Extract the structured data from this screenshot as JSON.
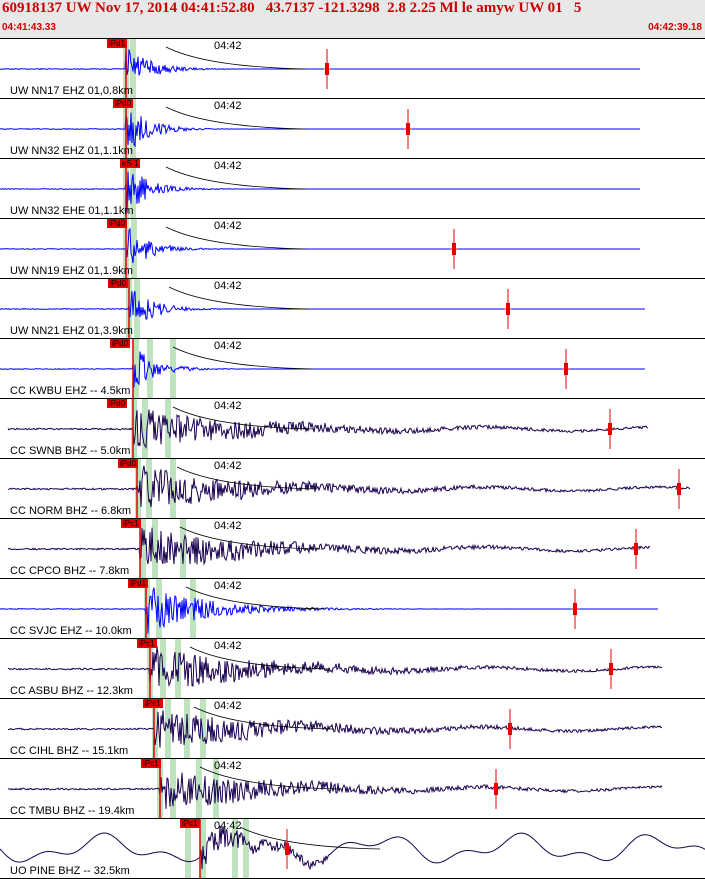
{
  "header": {
    "title": "60918137 UW Nov 17, 2014 04:41:52.80   43.7137 -121.3298  2.8 2.25 Ml le amyw UW 01   5",
    "start_time": "04:41:43.33",
    "end_time": "04:42:39.18"
  },
  "colors": {
    "header_text": "#cc0000",
    "trace_blue": "#0000ff",
    "trace_dark": "#1a0050",
    "pick": "#e80000",
    "window": "#bfe3bf"
  },
  "time_tick_label": "04:42",
  "traces": [
    {
      "station": "UW NN17 EHZ 01,0.8km",
      "pick_label": "iPd1",
      "color": "blue",
      "style": "burst"
    },
    {
      "station": "UW NN32 EHZ 01,1.1km",
      "pick_label": "iPd0",
      "color": "blue",
      "style": "burst"
    },
    {
      "station": "UW NN32 EHE 01,1.1km",
      "pick_label": "eS 1",
      "color": "blue",
      "style": "burst"
    },
    {
      "station": "UW NN19 EHZ 01,1.9km",
      "pick_label": "iPd0",
      "color": "blue",
      "style": "burst"
    },
    {
      "station": "UW NN21 EHZ 01,3.9km",
      "pick_label": "iPd0",
      "color": "blue",
      "style": "burst"
    },
    {
      "station": "CC KWBU EHZ -- 4.5km",
      "pick_label": "iPd0",
      "color": "blue",
      "style": "burst"
    },
    {
      "station": "CC SWNB BHZ -- 5.0km",
      "pick_label": "iPd0",
      "color": "dark",
      "style": "long"
    },
    {
      "station": "CC NORM BHZ -- 6.8km",
      "pick_label": "iPd0",
      "color": "dark",
      "style": "long"
    },
    {
      "station": "CC CPCO BHZ -- 7.8km",
      "pick_label": "iPc1",
      "color": "dark",
      "style": "long"
    },
    {
      "station": "CC SVJC EHZ -- 10.0km",
      "pick_label": "iPd1",
      "color": "blue",
      "style": "burst"
    },
    {
      "station": "CC ASBU BHZ -- 12.3km",
      "pick_label": "iPc1",
      "color": "dark",
      "style": "long"
    },
    {
      "station": "CC CIHL BHZ -- 15.1km",
      "pick_label": "iPc1",
      "color": "dark",
      "style": "long"
    },
    {
      "station": "CC TMBU BHZ -- 19.4km",
      "pick_label": "iPc1",
      "color": "dark",
      "style": "long"
    },
    {
      "station": "UO PINE BHZ -- 32.5km",
      "pick_label": "iPc1",
      "color": "dark",
      "style": "wavy"
    }
  ]
}
